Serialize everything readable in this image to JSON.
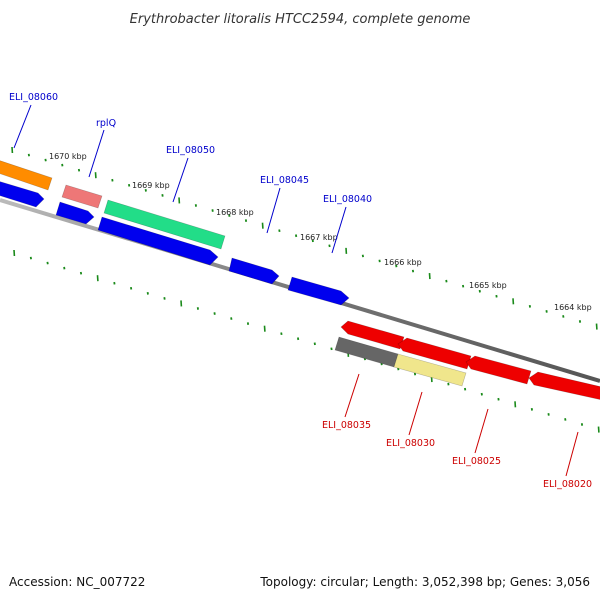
{
  "title": "Erythrobacter litoralis HTCC2594, complete genome",
  "footer": {
    "accession": "Accession: NC_007722",
    "topology": "Topology: circular; Length: 3,052,398 bp; Genes: 3,056"
  },
  "colors": {
    "backbone": "#808080",
    "tick": "#1a8a1a",
    "label_forward": "#0000cc",
    "label_reverse": "#cc0000"
  },
  "scale": {
    "labels": [
      "1670 kbp",
      "1669 kbp",
      "1668 kbp",
      "1667 kbp",
      "1666 kbp",
      "1665 kbp",
      "1664 kbp"
    ]
  },
  "genes": [
    {
      "id": "g-orange",
      "color": "#ff8c00",
      "strand": "forward"
    },
    {
      "id": "g-rplq",
      "color": "#ee7777",
      "strand": "forward"
    },
    {
      "id": "g-eli08050",
      "color": "#22dd88",
      "strand": "forward"
    },
    {
      "id": "g-blue1",
      "color": "#0000ee",
      "strand": "forward"
    },
    {
      "id": "g-blue2",
      "color": "#0000ee",
      "strand": "forward"
    },
    {
      "id": "g-blue3",
      "color": "#0000ee",
      "strand": "forward"
    },
    {
      "id": "g-blue4",
      "color": "#0000ee",
      "strand": "forward"
    },
    {
      "id": "g-blue5",
      "color": "#0000ee",
      "strand": "forward"
    },
    {
      "id": "g-red1",
      "color": "#ee0000",
      "strand": "reverse"
    },
    {
      "id": "g-red2",
      "color": "#ee0000",
      "strand": "reverse"
    },
    {
      "id": "g-red3",
      "color": "#ee0000",
      "strand": "reverse"
    },
    {
      "id": "g-red4",
      "color": "#ee0000",
      "strand": "reverse"
    },
    {
      "id": "g-grey",
      "color": "#666666",
      "strand": "reverse"
    },
    {
      "id": "g-yellow",
      "color": "#f0e68c",
      "strand": "reverse"
    }
  ],
  "labels": [
    {
      "text": "ELI_08060",
      "strand": "forward"
    },
    {
      "text": "rplQ",
      "strand": "forward"
    },
    {
      "text": "ELI_08050",
      "strand": "forward"
    },
    {
      "text": "ELI_08045",
      "strand": "forward"
    },
    {
      "text": "ELI_08040",
      "strand": "forward"
    },
    {
      "text": "ELI_08035",
      "strand": "reverse"
    },
    {
      "text": "ELI_08030",
      "strand": "reverse"
    },
    {
      "text": "ELI_08025",
      "strand": "reverse"
    },
    {
      "text": "ELI_08020",
      "strand": "reverse"
    }
  ]
}
